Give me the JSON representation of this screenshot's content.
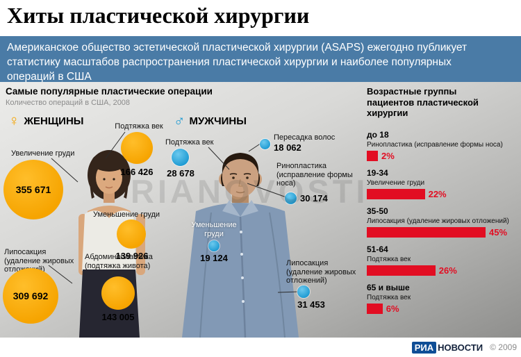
{
  "header": {
    "title": "Хиты пластической хирургии"
  },
  "intro": {
    "text": "Американское общество эстетической пластической хирургии (ASAPS) ежегодно публикует статистику масштабов распространения пластической хирургии и наиболее популярных операций в США"
  },
  "left_section": {
    "title": "Самые популярные пластические операции",
    "subtitle": "Количество операций в США, 2008",
    "women": {
      "symbol": "♀",
      "label": "ЖЕНЩИНЫ",
      "items": [
        {
          "label": "Подтяжка век",
          "value": "166 426"
        },
        {
          "label": "Увеличение груди",
          "value": "355 671"
        },
        {
          "label": "Уменьшение груди",
          "value": "139 926"
        },
        {
          "label": "Липосакция (удаление жировых отложений)",
          "value": "309 692"
        },
        {
          "label": "Абдоминопластика (подтяжка живота)",
          "value": "143 005"
        }
      ]
    },
    "men": {
      "symbol": "♂",
      "label": "МУЖЧИНЫ",
      "items": [
        {
          "label": "Подтяжка век",
          "value": "28 678"
        },
        {
          "label": "Пересадка волос",
          "value": "18 062"
        },
        {
          "label": "Ринопластика (исправление формы носа)",
          "value": "30 174"
        },
        {
          "label": "Уменьшение груди",
          "value": "19 124"
        },
        {
          "label": "Липосакция (удаление жировых отложений)",
          "value": "31 453"
        }
      ]
    }
  },
  "right_section": {
    "title": "Возрастные группы пациентов пластической хирургии",
    "rows": [
      {
        "age": "до 18",
        "procedure": "Ринопластика (исправление формы носа)",
        "pct": 2,
        "pct_label": "2%"
      },
      {
        "age": "19-34",
        "procedure": "Увеличение груди",
        "pct": 22,
        "pct_label": "22%"
      },
      {
        "age": "35-50",
        "procedure": "Липосакция (удаление жировых отложений)",
        "pct": 45,
        "pct_label": "45%"
      },
      {
        "age": "51-64",
        "procedure": "Подтяжка век",
        "pct": 26,
        "pct_label": "26%"
      },
      {
        "age": "65 и выше",
        "procedure": "Подтяжка век",
        "pct": 6,
        "pct_label": "6%"
      }
    ]
  },
  "watermark": "RIANOVOSTI",
  "footer": {
    "logo_ria": "РИА",
    "logo_novosti": "НОВОСТИ",
    "copyright": "© 2009"
  },
  "colors": {
    "intro_bg": "#4a7ba6",
    "women_bubble": "#f6a400",
    "men_bubble": "#1d9ad2",
    "age_bar": "#e20d22",
    "logo_blue": "#0f4e96"
  },
  "chart_data": [
    {
      "type": "bubble",
      "title": "Самые популярные пластические операции — женщины (количество операций в США, 2008)",
      "categories": [
        "Подтяжка век",
        "Увеличение груди",
        "Уменьшение груди",
        "Липосакция (удаление жировых отложений)",
        "Абдоминопластика (подтяжка живота)"
      ],
      "values": [
        166426,
        355671,
        139926,
        309692,
        143005
      ],
      "color": "#f6a400"
    },
    {
      "type": "bubble",
      "title": "Самые популярные пластические операции — мужчины (количество операций в США, 2008)",
      "categories": [
        "Подтяжка век",
        "Пересадка волос",
        "Ринопластика (исправление формы носа)",
        "Уменьшение груди",
        "Липосакция (удаление жировых отложений)"
      ],
      "values": [
        28678,
        18062,
        30174,
        19124,
        31453
      ],
      "color": "#1d9ad2"
    },
    {
      "type": "bar",
      "orientation": "horizontal",
      "title": "Возрастные группы пациентов пластической хирургии",
      "categories": [
        "до 18",
        "19-34",
        "35-50",
        "51-64",
        "65 и выше"
      ],
      "values": [
        2,
        22,
        45,
        26,
        6
      ],
      "annotations": [
        "Ринопластика (исправление формы носа)",
        "Увеличение груди",
        "Липосакция (удаление жировых отложений)",
        "Подтяжка век",
        "Подтяжка век"
      ],
      "unit": "%",
      "xlim": [
        0,
        50
      ],
      "color": "#e20d22",
      "grid": false,
      "legend": false
    }
  ]
}
